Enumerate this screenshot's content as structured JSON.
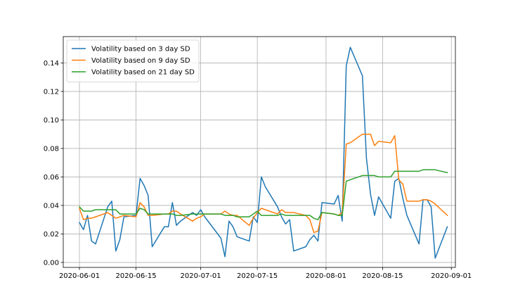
{
  "chart_data": {
    "type": "line",
    "title": "",
    "xlabel": "",
    "ylabel": "",
    "x_axis": {
      "type": "date",
      "range": [
        "2020-05-28",
        "2020-09-02"
      ],
      "ticks": [
        "2020-06-01",
        "2020-06-15",
        "2020-07-01",
        "2020-07-15",
        "2020-08-01",
        "2020-08-15",
        "2020-09-01"
      ]
    },
    "y_axis": {
      "range": [
        -0.0035,
        0.1585
      ],
      "ticks": [
        0.0,
        0.02,
        0.04,
        0.06,
        0.08,
        0.1,
        0.12,
        0.14
      ],
      "tick_labels": [
        "0.00",
        "0.02",
        "0.04",
        "0.06",
        "0.08",
        "0.10",
        "0.12",
        "0.14"
      ]
    },
    "grid": true,
    "legend": {
      "position": "top-left"
    },
    "series": [
      {
        "name": "Volatility based on 3 day SD",
        "color": "#1f77b4",
        "points": [
          [
            "2020-06-01",
            0.028
          ],
          [
            "2020-06-02",
            0.023
          ],
          [
            "2020-06-03",
            0.033
          ],
          [
            "2020-06-04",
            0.015
          ],
          [
            "2020-06-05",
            0.013
          ],
          [
            "2020-06-08",
            0.039
          ],
          [
            "2020-06-09",
            0.043
          ],
          [
            "2020-06-10",
            0.008
          ],
          [
            "2020-06-11",
            0.016
          ],
          [
            "2020-06-12",
            0.032
          ],
          [
            "2020-06-15",
            0.033
          ],
          [
            "2020-06-16",
            0.059
          ],
          [
            "2020-06-17",
            0.054
          ],
          [
            "2020-06-18",
            0.047
          ],
          [
            "2020-06-19",
            0.011
          ],
          [
            "2020-06-22",
            0.025
          ],
          [
            "2020-06-23",
            0.025
          ],
          [
            "2020-06-24",
            0.042
          ],
          [
            "2020-06-25",
            0.026
          ],
          [
            "2020-06-26",
            0.029
          ],
          [
            "2020-06-29",
            0.035
          ],
          [
            "2020-06-30",
            0.033
          ],
          [
            "2020-07-01",
            0.037
          ],
          [
            "2020-07-02",
            0.032
          ],
          [
            "2020-07-06",
            0.017
          ],
          [
            "2020-07-07",
            0.004
          ],
          [
            "2020-07-08",
            0.029
          ],
          [
            "2020-07-09",
            0.025
          ],
          [
            "2020-07-10",
            0.018
          ],
          [
            "2020-07-13",
            0.015
          ],
          [
            "2020-07-14",
            0.032
          ],
          [
            "2020-07-15",
            0.028
          ],
          [
            "2020-07-16",
            0.06
          ],
          [
            "2020-07-17",
            0.053
          ],
          [
            "2020-07-20",
            0.039
          ],
          [
            "2020-07-21",
            0.032
          ],
          [
            "2020-07-22",
            0.027
          ],
          [
            "2020-07-23",
            0.03
          ],
          [
            "2020-07-24",
            0.008
          ],
          [
            "2020-07-27",
            0.011
          ],
          [
            "2020-07-28",
            0.016
          ],
          [
            "2020-07-29",
            0.019
          ],
          [
            "2020-07-30",
            0.015
          ],
          [
            "2020-07-31",
            0.042
          ],
          [
            "2020-08-03",
            0.041
          ],
          [
            "2020-08-04",
            0.047
          ],
          [
            "2020-08-05",
            0.029
          ],
          [
            "2020-08-06",
            0.138
          ],
          [
            "2020-08-07",
            0.151
          ],
          [
            "2020-08-10",
            0.131
          ],
          [
            "2020-08-11",
            0.073
          ],
          [
            "2020-08-12",
            0.048
          ],
          [
            "2020-08-13",
            0.033
          ],
          [
            "2020-08-14",
            0.046
          ],
          [
            "2020-08-17",
            0.031
          ],
          [
            "2020-08-18",
            0.057
          ],
          [
            "2020-08-19",
            0.059
          ],
          [
            "2020-08-20",
            0.045
          ],
          [
            "2020-08-21",
            0.033
          ],
          [
            "2020-08-24",
            0.013
          ],
          [
            "2020-08-25",
            0.044
          ],
          [
            "2020-08-26",
            0.044
          ],
          [
            "2020-08-27",
            0.039
          ],
          [
            "2020-08-28",
            0.003
          ],
          [
            "2020-08-31",
            0.025
          ]
        ]
      },
      {
        "name": "Volatility based on 9 day SD",
        "color": "#ff7f0e",
        "points": [
          [
            "2020-06-01",
            0.038
          ],
          [
            "2020-06-02",
            0.03
          ],
          [
            "2020-06-03",
            0.031
          ],
          [
            "2020-06-04",
            0.031
          ],
          [
            "2020-06-05",
            0.032
          ],
          [
            "2020-06-08",
            0.035
          ],
          [
            "2020-06-09",
            0.033
          ],
          [
            "2020-06-10",
            0.031
          ],
          [
            "2020-06-11",
            0.032
          ],
          [
            "2020-06-12",
            0.033
          ],
          [
            "2020-06-15",
            0.032
          ],
          [
            "2020-06-16",
            0.042
          ],
          [
            "2020-06-17",
            0.039
          ],
          [
            "2020-06-18",
            0.033
          ],
          [
            "2020-06-19",
            0.033
          ],
          [
            "2020-06-22",
            0.034
          ],
          [
            "2020-06-23",
            0.034
          ],
          [
            "2020-06-24",
            0.036
          ],
          [
            "2020-06-25",
            0.036
          ],
          [
            "2020-06-26",
            0.034
          ],
          [
            "2020-06-29",
            0.029
          ],
          [
            "2020-06-30",
            0.031
          ],
          [
            "2020-07-01",
            0.032
          ],
          [
            "2020-07-02",
            0.034
          ],
          [
            "2020-07-06",
            0.034
          ],
          [
            "2020-07-07",
            0.036
          ],
          [
            "2020-07-08",
            0.034
          ],
          [
            "2020-07-09",
            0.033
          ],
          [
            "2020-07-10",
            0.033
          ],
          [
            "2020-07-13",
            0.026
          ],
          [
            "2020-07-14",
            0.031
          ],
          [
            "2020-07-15",
            0.035
          ],
          [
            "2020-07-16",
            0.038
          ],
          [
            "2020-07-17",
            0.037
          ],
          [
            "2020-07-20",
            0.034
          ],
          [
            "2020-07-21",
            0.037
          ],
          [
            "2020-07-22",
            0.035
          ],
          [
            "2020-07-23",
            0.035
          ],
          [
            "2020-07-24",
            0.035
          ],
          [
            "2020-07-27",
            0.033
          ],
          [
            "2020-07-28",
            0.03
          ],
          [
            "2020-07-29",
            0.021
          ],
          [
            "2020-07-30",
            0.022
          ],
          [
            "2020-07-31",
            0.035
          ],
          [
            "2020-08-03",
            0.034
          ],
          [
            "2020-08-04",
            0.033
          ],
          [
            "2020-08-05",
            0.035
          ],
          [
            "2020-08-06",
            0.083
          ],
          [
            "2020-08-07",
            0.084
          ],
          [
            "2020-08-10",
            0.09
          ],
          [
            "2020-08-11",
            0.09
          ],
          [
            "2020-08-12",
            0.09
          ],
          [
            "2020-08-13",
            0.082
          ],
          [
            "2020-08-14",
            0.085
          ],
          [
            "2020-08-17",
            0.084
          ],
          [
            "2020-08-18",
            0.089
          ],
          [
            "2020-08-19",
            0.058
          ],
          [
            "2020-08-20",
            0.055
          ],
          [
            "2020-08-21",
            0.043
          ],
          [
            "2020-08-24",
            0.043
          ],
          [
            "2020-08-25",
            0.044
          ],
          [
            "2020-08-26",
            0.044
          ],
          [
            "2020-08-27",
            0.043
          ],
          [
            "2020-08-28",
            0.041
          ],
          [
            "2020-08-31",
            0.033
          ]
        ]
      },
      {
        "name": "Volatility based on 21 day SD",
        "color": "#2ca02c",
        "points": [
          [
            "2020-06-01",
            0.039
          ],
          [
            "2020-06-02",
            0.036
          ],
          [
            "2020-06-03",
            0.036
          ],
          [
            "2020-06-04",
            0.036
          ],
          [
            "2020-06-05",
            0.037
          ],
          [
            "2020-06-08",
            0.037
          ],
          [
            "2020-06-09",
            0.037
          ],
          [
            "2020-06-10",
            0.037
          ],
          [
            "2020-06-11",
            0.034
          ],
          [
            "2020-06-12",
            0.034
          ],
          [
            "2020-06-15",
            0.034
          ],
          [
            "2020-06-16",
            0.038
          ],
          [
            "2020-06-17",
            0.037
          ],
          [
            "2020-06-18",
            0.034
          ],
          [
            "2020-06-19",
            0.034
          ],
          [
            "2020-06-22",
            0.034
          ],
          [
            "2020-06-23",
            0.034
          ],
          [
            "2020-06-24",
            0.034
          ],
          [
            "2020-06-25",
            0.033
          ],
          [
            "2020-06-26",
            0.033
          ],
          [
            "2020-06-29",
            0.034
          ],
          [
            "2020-06-30",
            0.034
          ],
          [
            "2020-07-01",
            0.034
          ],
          [
            "2020-07-02",
            0.034
          ],
          [
            "2020-07-06",
            0.034
          ],
          [
            "2020-07-07",
            0.033
          ],
          [
            "2020-07-08",
            0.033
          ],
          [
            "2020-07-09",
            0.033
          ],
          [
            "2020-07-10",
            0.032
          ],
          [
            "2020-07-13",
            0.032
          ],
          [
            "2020-07-14",
            0.034
          ],
          [
            "2020-07-15",
            0.036
          ],
          [
            "2020-07-16",
            0.033
          ],
          [
            "2020-07-17",
            0.033
          ],
          [
            "2020-07-20",
            0.033
          ],
          [
            "2020-07-21",
            0.034
          ],
          [
            "2020-07-22",
            0.033
          ],
          [
            "2020-07-23",
            0.033
          ],
          [
            "2020-07-24",
            0.033
          ],
          [
            "2020-07-27",
            0.033
          ],
          [
            "2020-07-28",
            0.033
          ],
          [
            "2020-07-29",
            0.031
          ],
          [
            "2020-07-30",
            0.03
          ],
          [
            "2020-07-31",
            0.035
          ],
          [
            "2020-08-03",
            0.034
          ],
          [
            "2020-08-04",
            0.033
          ],
          [
            "2020-08-05",
            0.033
          ],
          [
            "2020-08-06",
            0.057
          ],
          [
            "2020-08-07",
            0.058
          ],
          [
            "2020-08-10",
            0.061
          ],
          [
            "2020-08-11",
            0.061
          ],
          [
            "2020-08-12",
            0.061
          ],
          [
            "2020-08-13",
            0.061
          ],
          [
            "2020-08-14",
            0.06
          ],
          [
            "2020-08-17",
            0.06
          ],
          [
            "2020-08-18",
            0.064
          ],
          [
            "2020-08-19",
            0.064
          ],
          [
            "2020-08-20",
            0.064
          ],
          [
            "2020-08-21",
            0.064
          ],
          [
            "2020-08-24",
            0.064
          ],
          [
            "2020-08-25",
            0.065
          ],
          [
            "2020-08-26",
            0.065
          ],
          [
            "2020-08-27",
            0.065
          ],
          [
            "2020-08-28",
            0.065
          ],
          [
            "2020-08-31",
            0.063
          ]
        ]
      }
    ]
  }
}
